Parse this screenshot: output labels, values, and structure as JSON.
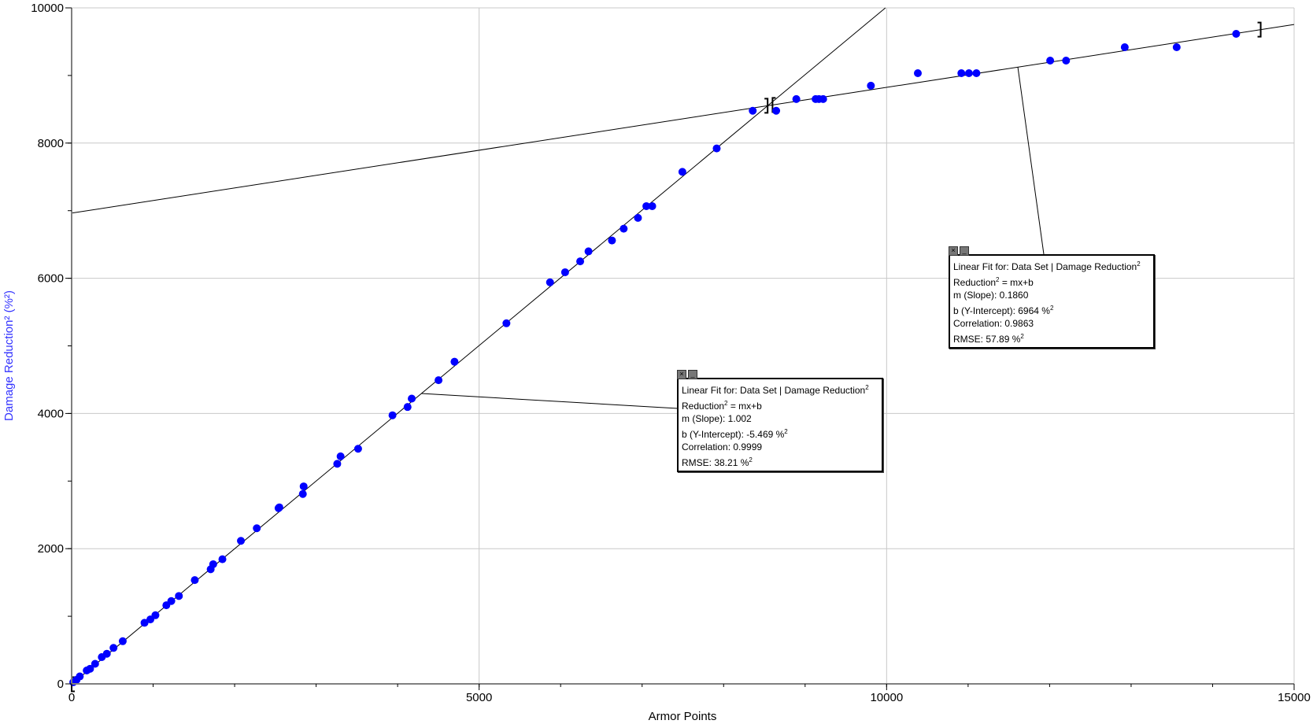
{
  "chart_data": {
    "type": "scatter",
    "xlabel": "Armor Points",
    "ylabel": "Damage Reduction² (%²)",
    "xlim": [
      0,
      15000
    ],
    "ylim": [
      0,
      10000
    ],
    "x_ticks": [
      "0",
      "5000",
      "10000",
      "15000"
    ],
    "y_ticks": [
      "0",
      "2000",
      "4000",
      "6000",
      "8000",
      "10000"
    ],
    "grid": true,
    "point_color": "#0000ff",
    "series": [
      {
        "name": "Data Set | Damage Reduction²",
        "points": [
          [
            20,
            25
          ],
          [
            60,
            60
          ],
          [
            100,
            110
          ],
          [
            185,
            198
          ],
          [
            226,
            223
          ],
          [
            288,
            297
          ],
          [
            370,
            396
          ],
          [
            432,
            446
          ],
          [
            514,
            532
          ],
          [
            627,
            631
          ],
          [
            894,
            903
          ],
          [
            966,
            953
          ],
          [
            1028,
            1015
          ],
          [
            1162,
            1163
          ],
          [
            1223,
            1225
          ],
          [
            1316,
            1300
          ],
          [
            1511,
            1535
          ],
          [
            1706,
            1695
          ],
          [
            1737,
            1770
          ],
          [
            1850,
            1844
          ],
          [
            2077,
            2116
          ],
          [
            2272,
            2302
          ],
          [
            2539,
            2599
          ],
          [
            2549,
            2611
          ],
          [
            2837,
            2809
          ],
          [
            2847,
            2921
          ],
          [
            3259,
            3255
          ],
          [
            3300,
            3366
          ],
          [
            3515,
            3478
          ],
          [
            3937,
            3973
          ],
          [
            4122,
            4096
          ],
          [
            4173,
            4220
          ],
          [
            4502,
            4492
          ],
          [
            4698,
            4765
          ],
          [
            5335,
            5334
          ],
          [
            5870,
            5940
          ],
          [
            6055,
            6089
          ],
          [
            6240,
            6250
          ],
          [
            6342,
            6398
          ],
          [
            6630,
            6559
          ],
          [
            6774,
            6733
          ],
          [
            6949,
            6893
          ],
          [
            7052,
            7067
          ],
          [
            7124,
            7067
          ],
          [
            7494,
            7574
          ],
          [
            7915,
            7921
          ],
          [
            8357,
            8478
          ],
          [
            8645,
            8478
          ],
          [
            8892,
            8651
          ],
          [
            9129,
            8651
          ],
          [
            9170,
            8651
          ],
          [
            9221,
            8651
          ],
          [
            9807,
            8849
          ],
          [
            10383,
            9034
          ],
          [
            10917,
            9034
          ],
          [
            11010,
            9034
          ],
          [
            11102,
            9034
          ],
          [
            12007,
            9220
          ],
          [
            12202,
            9220
          ],
          [
            12922,
            9418
          ],
          [
            13559,
            9418
          ],
          [
            14289,
            9616
          ]
        ]
      }
    ],
    "fits": [
      {
        "m": 1.002,
        "b": -5.469,
        "range": [
          0,
          8540
        ],
        "title": "Linear Fit for: Data Set | Damage Reduction",
        "equation": "Reduction",
        "equation_rest": " = mx+b",
        "slope": "m (Slope): 1.002",
        "intercept": "b (Y-Intercept): -5.469 %",
        "correlation": "Correlation: 0.9999",
        "rmse": "RMSE: 38.21 %",
        "sup": "2"
      },
      {
        "m": 0.186,
        "b": 6964,
        "range": [
          8600,
          14590
        ],
        "title": "Linear Fit for: Data Set | Damage Reduction",
        "equation": "Reduction",
        "equation_rest": " = mx+b",
        "slope": "m (Slope): 0.1860",
        "intercept": "b (Y-Intercept): 6964 %",
        "correlation": "Correlation: 0.9863",
        "rmse": "RMSE: 57.89 %",
        "sup": "2"
      }
    ],
    "box_buttons": {
      "close": "×",
      "minimize": "_"
    }
  }
}
